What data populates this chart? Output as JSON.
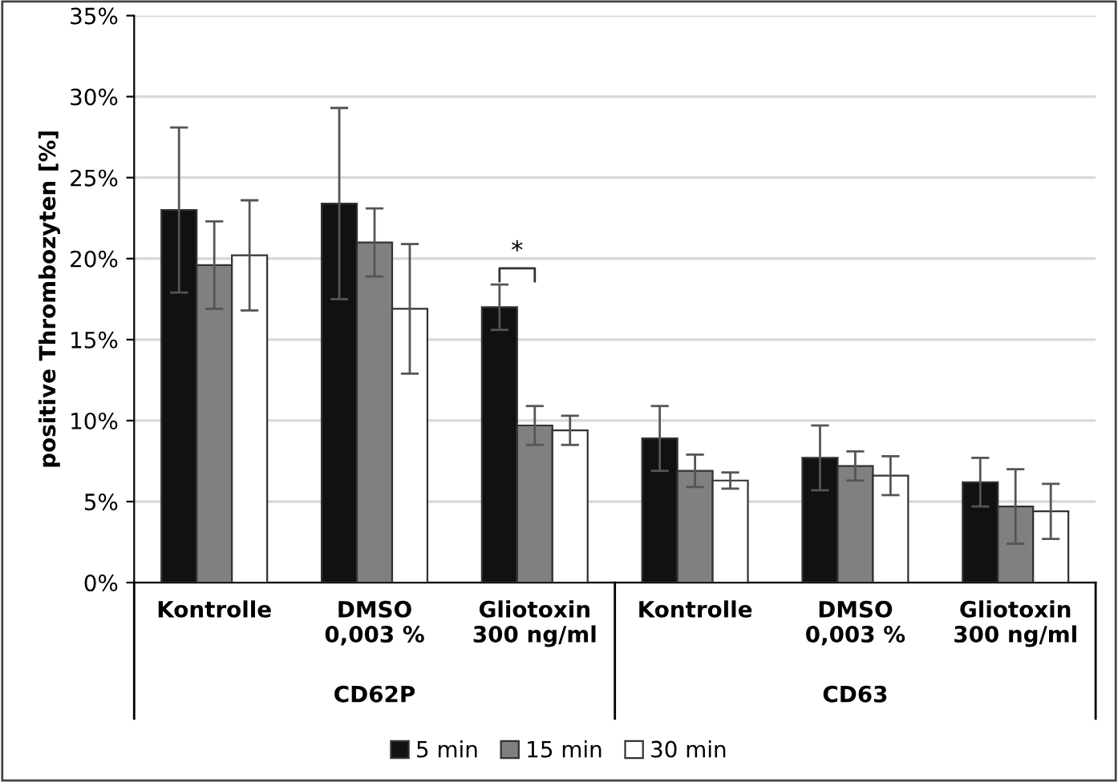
{
  "chart_data": {
    "type": "bar",
    "ylabel": "positive Thrombozyten [%]",
    "categories": [
      "Kontrolle",
      "DMSO\n0,003 %",
      "Gliotoxin\n300 ng/ml",
      "Kontrolle",
      "DMSO\n0,003 %",
      "Gliotoxin\n300 ng/ml"
    ],
    "series": [
      {
        "name": "5 min",
        "color": "#111111",
        "values": [
          23.0,
          23.4,
          17.0,
          8.9,
          7.7,
          6.2
        ],
        "errors": [
          5.1,
          5.9,
          1.4,
          2.0,
          2.0,
          1.5
        ]
      },
      {
        "name": "15 min",
        "color": "#808080",
        "values": [
          19.6,
          21.0,
          9.7,
          6.9,
          7.2,
          4.7
        ],
        "errors": [
          2.7,
          2.1,
          1.2,
          1.0,
          0.9,
          2.3
        ]
      },
      {
        "name": "30 min",
        "color": "#ffffff",
        "values": [
          20.2,
          16.9,
          9.4,
          6.3,
          6.6,
          4.4
        ],
        "errors": [
          3.4,
          4.0,
          0.9,
          0.5,
          1.2,
          1.7
        ]
      }
    ],
    "ylim": [
      0,
      35
    ],
    "yticks": [
      {
        "value": 0,
        "label": "0%"
      },
      {
        "value": 5,
        "label": "5%"
      },
      {
        "value": 10,
        "label": "10%"
      },
      {
        "value": 15,
        "label": "15%"
      },
      {
        "value": 20,
        "label": "20%"
      },
      {
        "value": 25,
        "label": "25%"
      },
      {
        "value": 30,
        "label": "30%"
      },
      {
        "value": 35,
        "label": "35%"
      }
    ],
    "annotations": [
      "CD62P",
      "CD63",
      "*"
    ],
    "grid": "y",
    "legend": "bottom"
  }
}
